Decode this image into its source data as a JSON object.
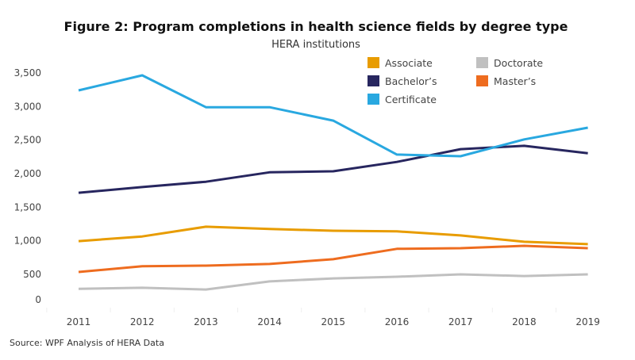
{
  "chart_data": {
    "type": "line",
    "title": "Figure 2: Program completions in health science fields by degree type",
    "subtitle": "HERA institutions",
    "source": "Source: WPF Analysis of HERA Data",
    "x": [
      2011,
      2012,
      2013,
      2014,
      2015,
      2016,
      2017,
      2018,
      2019
    ],
    "x_tick_labels": [
      "2011",
      "2012",
      "2013",
      "2014",
      "2015",
      "2016",
      "2017",
      "2018",
      "2019"
    ],
    "y_ticks": [
      0,
      500,
      1000,
      1500,
      2000,
      2500,
      3000,
      3500
    ],
    "y_tick_labels": [
      "0",
      "500",
      "1,000",
      "1,500",
      "2,000",
      "2,500",
      "3,000",
      "3,500"
    ],
    "ylim": [
      0,
      3600
    ],
    "grid": false,
    "legend_placement": "top-right",
    "series": [
      {
        "name": "Associate",
        "color": "#e89c00",
        "values": [
          995,
          1065,
          1210,
          1175,
          1150,
          1140,
          1080,
          985,
          950
        ]
      },
      {
        "name": "Bachelor’s",
        "color": "#27265f",
        "values": [
          1715,
          1800,
          1880,
          2020,
          2035,
          2175,
          2365,
          2415,
          2305
        ]
      },
      {
        "name": "Certificate",
        "color": "#29a8e0",
        "values": [
          3240,
          3465,
          2990,
          2990,
          2790,
          2285,
          2260,
          2510,
          2685
        ]
      },
      {
        "name": "Doctorate",
        "color": "#c0c0c0",
        "values": [
          285,
          300,
          275,
          395,
          440,
          465,
          500,
          475,
          500
        ]
      },
      {
        "name": "Master’s",
        "color": "#ee6c1f",
        "values": [
          535,
          620,
          630,
          655,
          725,
          880,
          890,
          925,
          890
        ]
      }
    ]
  }
}
